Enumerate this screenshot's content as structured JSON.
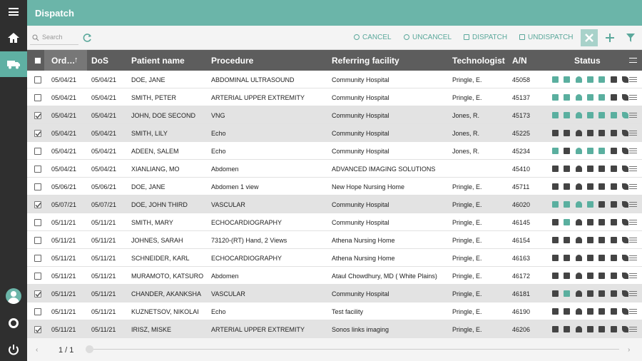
{
  "header": {
    "title": "Dispatch"
  },
  "toolbar": {
    "search_placeholder": "Search",
    "actions": [
      "CANCEL",
      "UNCANCEL",
      "DISPATCH",
      "UNDISPATCH"
    ]
  },
  "table": {
    "columns": [
      "Ord…",
      "DoS",
      "Patient name",
      "Procedure",
      "Referring facility",
      "Technologist",
      "A/N",
      "Status"
    ],
    "rows": [
      {
        "checked": false,
        "cells": [
          "05/04/21",
          "05/04/21",
          "DOE, JANE",
          "ABDOMINAL ULTRASOUND",
          "Community Hospital",
          "Pringle, E.",
          "45058"
        ],
        "status": [
          true,
          true,
          true,
          true,
          true,
          false,
          false
        ]
      },
      {
        "checked": false,
        "cells": [
          "05/04/21",
          "05/04/21",
          "SMITH, PETER",
          "ARTERIAL UPPER EXTREMITY",
          "Community Hospital",
          "Pringle, E.",
          "45137"
        ],
        "status": [
          true,
          true,
          true,
          true,
          true,
          false,
          false
        ]
      },
      {
        "checked": true,
        "cells": [
          "05/04/21",
          "05/04/21",
          "JOHN, DOE SECOND",
          "VNG",
          "Community Hospital",
          "Jones, R.",
          "45173"
        ],
        "status": [
          true,
          true,
          true,
          true,
          true,
          true,
          true
        ]
      },
      {
        "checked": true,
        "cells": [
          "05/04/21",
          "05/04/21",
          "SMITH, LILY",
          "Echo",
          "Community Hospital",
          "Jones, R.",
          "45225"
        ],
        "status": [
          false,
          false,
          false,
          false,
          false,
          false,
          false
        ]
      },
      {
        "checked": false,
        "cells": [
          "05/04/21",
          "05/04/21",
          "ADEEN, SALEM",
          "Echo",
          "Community Hospital",
          "Jones, R.",
          "45234"
        ],
        "status": [
          true,
          false,
          true,
          true,
          true,
          false,
          false
        ]
      },
      {
        "checked": false,
        "cells": [
          "05/04/21",
          "05/04/21",
          "XIANLIANG, MO",
          "Abdomen",
          "ADVANCED IMAGING SOLUTIONS",
          null,
          "45410"
        ],
        "status": [
          false,
          false,
          false,
          false,
          false,
          false,
          false
        ]
      },
      {
        "checked": false,
        "cells": [
          "05/06/21",
          "05/06/21",
          "DOE, JANE",
          "Abdomen 1 view",
          "New Hope Nursing Home",
          "Pringle, E.",
          "45711"
        ],
        "status": [
          false,
          false,
          false,
          false,
          false,
          false,
          false
        ]
      },
      {
        "checked": true,
        "cells": [
          "05/07/21",
          "05/07/21",
          "DOE, JOHN THIRD",
          "VASCULAR",
          "Community Hospital",
          "Pringle, E.",
          "46020"
        ],
        "status": [
          true,
          true,
          true,
          true,
          false,
          false,
          false
        ]
      },
      {
        "checked": false,
        "cells": [
          "05/11/21",
          "05/11/21",
          "SMITH, MARY",
          "ECHOCARDIOGRAPHY",
          "Community Hospital",
          "Pringle, E.",
          "46145"
        ],
        "status": [
          false,
          true,
          false,
          false,
          false,
          false,
          false
        ]
      },
      {
        "checked": false,
        "cells": [
          "05/11/21",
          "05/11/21",
          "JOHNES, SARAH",
          "73120-(RT) Hand, 2 Views",
          "Athena Nursing Home",
          "Pringle, E.",
          "46154"
        ],
        "status": [
          false,
          false,
          false,
          false,
          false,
          false,
          false
        ]
      },
      {
        "checked": false,
        "cells": [
          "05/11/21",
          "05/11/21",
          "SCHNEIDER, KARL",
          "ECHOCARDIOGRAPHY",
          "Athena Nursing Home",
          "Pringle, E.",
          "46163"
        ],
        "status": [
          false,
          false,
          false,
          false,
          false,
          false,
          false
        ]
      },
      {
        "checked": false,
        "cells": [
          "05/11/21",
          "05/11/21",
          "MURAMOTO, KATSURO",
          "Abdomen",
          "Ataul Chowdhury, MD ( White Plains)",
          "Pringle, E.",
          "46172"
        ],
        "status": [
          false,
          false,
          false,
          false,
          false,
          false,
          false
        ]
      },
      {
        "checked": true,
        "cells": [
          "05/11/21",
          "05/11/21",
          "CHANDER, AKANKSHA",
          "VASCULAR",
          "Community Hospital",
          "Pringle, E.",
          "46181"
        ],
        "status": [
          false,
          true,
          false,
          false,
          false,
          false,
          false
        ]
      },
      {
        "checked": false,
        "cells": [
          "05/11/21",
          "05/11/21",
          "KUZNETSOV, NIKOLAI",
          "Echo",
          "Test facility",
          "Pringle, E.",
          "46190"
        ],
        "status": [
          false,
          false,
          false,
          false,
          false,
          false,
          false
        ]
      },
      {
        "checked": true,
        "cells": [
          "05/11/21",
          "05/11/21",
          "IRISZ, MISKE",
          "ARTERIAL UPPER EXTREMITY",
          "Sonos links imaging",
          "Pringle, E.",
          "46206"
        ],
        "status": [
          false,
          false,
          false,
          false,
          false,
          false,
          false
        ]
      }
    ]
  },
  "footer": {
    "pager": "1 / 1"
  }
}
